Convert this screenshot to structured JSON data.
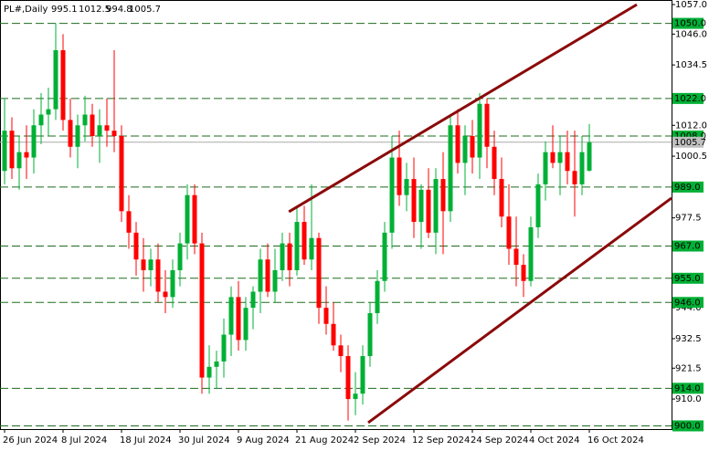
{
  "chart_data": {
    "type": "candlestick",
    "symbol": "PL#,Daily",
    "categories": [
      "26 Jun 2024",
      null,
      null,
      null,
      null,
      null,
      null,
      null,
      "8 Jul 2024",
      null,
      null,
      null,
      null,
      null,
      null,
      null,
      "18 Jul 2024",
      null,
      null,
      null,
      null,
      null,
      null,
      null,
      "30 Jul 2024",
      null,
      null,
      null,
      null,
      null,
      null,
      null,
      "9 Aug 2024",
      null,
      null,
      null,
      null,
      null,
      null,
      null,
      "21 Aug 2024",
      null,
      null,
      null,
      null,
      null,
      null,
      null,
      "2 Sep 2024",
      null,
      null,
      null,
      null,
      null,
      null,
      null,
      "12 Sep 2024",
      null,
      null,
      null,
      null,
      null,
      null,
      null,
      "24 Sep 2024",
      null,
      null,
      null,
      null,
      null,
      null,
      null,
      "4 Oct 2024",
      null,
      null,
      null,
      null,
      null,
      null,
      null,
      "16 Oct 2024"
    ],
    "open": [
      995,
      1010,
      996,
      1002,
      1000,
      1012,
      1016,
      1018,
      1040,
      1014,
      1004,
      1012,
      1016,
      1008,
      1012,
      1010,
      1008,
      980,
      972,
      962,
      958,
      962,
      950,
      948,
      958,
      968,
      986,
      968,
      918,
      922,
      924,
      934,
      948,
      932,
      944,
      950,
      962,
      950,
      958,
      968,
      958,
      976,
      962,
      970,
      944,
      938,
      930,
      926,
      910,
      912,
      926,
      942,
      954,
      972,
      1000,
      986,
      992,
      976,
      988,
      972,
      992,
      980,
      1012,
      998,
      1008,
      1000,
      1020,
      1004,
      992,
      978,
      966,
      960,
      954,
      974,
      990,
      1002,
      998,
      1002,
      995,
      990,
      995.1
    ],
    "high": [
      1022,
      1015,
      1008,
      1012,
      1018,
      1024,
      1026,
      1050,
      1046,
      1022,
      1016,
      1023,
      1020,
      1018,
      1022,
      1040,
      1012,
      986,
      976,
      970,
      966,
      968,
      958,
      962,
      972,
      990,
      990,
      972,
      930,
      928,
      940,
      952,
      954,
      948,
      952,
      966,
      968,
      966,
      972,
      972,
      982,
      982,
      990,
      972,
      952,
      946,
      934,
      930,
      920,
      930,
      946,
      958,
      976,
      1008,
      1010,
      998,
      1000,
      990,
      996,
      996,
      1002,
      1016,
      1018,
      1012,
      1014,
      1024,
      1022,
      1010,
      1000,
      990,
      978,
      964,
      978,
      994,
      1006,
      1012,
      1008,
      1010,
      1010,
      1008,
      1012.5
    ],
    "low": [
      990,
      992,
      988,
      992,
      994,
      1005,
      1008,
      1014,
      1010,
      1000,
      996,
      1006,
      1004,
      998,
      1004,
      1002,
      976,
      966,
      956,
      950,
      952,
      946,
      942,
      944,
      952,
      962,
      964,
      912,
      912,
      914,
      918,
      926,
      928,
      928,
      936,
      942,
      948,
      946,
      954,
      952,
      956,
      960,
      958,
      938,
      934,
      928,
      920,
      902,
      904,
      908,
      922,
      938,
      950,
      966,
      982,
      980,
      970,
      966,
      970,
      964,
      964,
      976,
      994,
      986,
      994,
      992,
      996,
      986,
      974,
      960,
      952,
      948,
      952,
      970,
      984,
      996,
      986,
      990,
      978,
      986,
      994.8
    ],
    "close": [
      1010,
      996,
      1002,
      1000,
      1012,
      1016,
      1018,
      1040,
      1014,
      1004,
      1012,
      1016,
      1008,
      1012,
      1010,
      1008,
      980,
      972,
      962,
      958,
      962,
      950,
      948,
      958,
      968,
      986,
      968,
      918,
      922,
      924,
      934,
      948,
      932,
      944,
      950,
      962,
      950,
      958,
      968,
      958,
      976,
      962,
      970,
      944,
      938,
      930,
      926,
      910,
      912,
      926,
      942,
      954,
      972,
      1000,
      986,
      992,
      976,
      988,
      972,
      992,
      980,
      1012,
      998,
      1008,
      1000,
      1020,
      1004,
      992,
      978,
      966,
      960,
      954,
      974,
      990,
      1002,
      998,
      1002,
      995,
      990,
      1002,
      1005.7
    ],
    "up_color": "#00b035",
    "down_color": "#ff0000",
    "ylim": [
      898.8,
      1058.7
    ],
    "yticks": [
      {
        "value": 1057,
        "label": "1057.0"
      },
      {
        "value": 1046,
        "label": "1046.0"
      },
      {
        "value": 1034.5,
        "label": "1034.5"
      },
      {
        "value": 1012,
        "label": "1012.0"
      },
      {
        "value": 1000.5,
        "label": "1000.5"
      },
      {
        "value": 977.5,
        "label": "977.5"
      },
      {
        "value": 944,
        "label": "944.0"
      },
      {
        "value": 932.5,
        "label": "932.5"
      },
      {
        "value": 921.5,
        "label": "921.5"
      },
      {
        "value": 910,
        "label": "910.0"
      }
    ],
    "levels": [
      {
        "value": 1050,
        "label": "1050.0"
      },
      {
        "value": 1022,
        "label": "1022.0"
      },
      {
        "value": 1008,
        "label": "1008.0"
      },
      {
        "value": 989,
        "label": "989.0"
      },
      {
        "value": 967,
        "label": "967.0"
      },
      {
        "value": 955,
        "label": "955.0"
      },
      {
        "value": 946,
        "label": "946.0"
      },
      {
        "value": 914,
        "label": "914.0"
      },
      {
        "value": 900,
        "label": "900.0"
      }
    ],
    "level_color": "#1e6b1e",
    "level_label_color": "#00b035",
    "trendlines": [
      {
        "x": [
          38.9,
          86.5
        ],
        "y": [
          979.8,
          1057
        ]
      },
      {
        "x": [
          49.75,
          91.25
        ],
        "y": [
          901.2,
          984.9
        ]
      }
    ],
    "trendline_color": "#8b0a0a"
  }
}
